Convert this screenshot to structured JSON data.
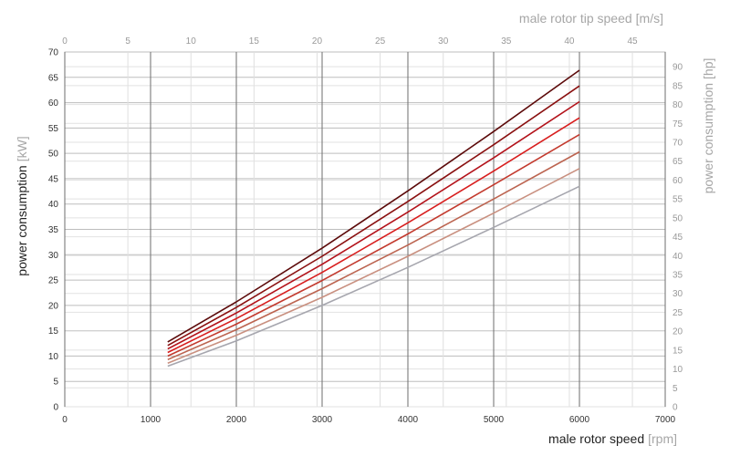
{
  "chart_data": {
    "type": "line",
    "x_axis": {
      "label": "male rotor speed",
      "unit": "[rpm]",
      "range": [
        0,
        7000
      ],
      "ticks": [
        0,
        1000,
        2000,
        3000,
        4000,
        5000,
        6000,
        7000
      ]
    },
    "x2_axis": {
      "label": "male rotor tip speed",
      "unit": "[m/s]",
      "range": [
        0,
        47.6
      ],
      "ticks": [
        0,
        5,
        10,
        15,
        20,
        25,
        30,
        35,
        40,
        45
      ]
    },
    "y_axis": {
      "label": "power consumption",
      "unit": "[kW]",
      "range": [
        0,
        70
      ],
      "ticks": [
        0,
        5,
        10,
        15,
        20,
        25,
        30,
        35,
        40,
        45,
        50,
        55,
        60,
        65,
        70
      ]
    },
    "y2_axis": {
      "label": "power consumption",
      "unit": "[hp]",
      "range": [
        0,
        93.9
      ],
      "ticks": [
        0,
        5,
        10,
        15,
        20,
        25,
        30,
        35,
        40,
        45,
        50,
        55,
        60,
        65,
        70,
        75,
        80,
        85,
        90
      ]
    },
    "grid": true,
    "x": [
      1200,
      2000,
      3000,
      4000,
      5000,
      6000
    ],
    "series": [
      {
        "color": "#5c0a0a",
        "values": [
          12.8,
          20.7,
          31.3,
          42.6,
          54.3,
          66.4
        ]
      },
      {
        "color": "#8a1010",
        "values": [
          12.1,
          19.6,
          29.7,
          40.5,
          51.7,
          63.3
        ]
      },
      {
        "color": "#b3121a",
        "values": [
          11.4,
          18.5,
          28.1,
          38.4,
          49.1,
          60.2
        ]
      },
      {
        "color": "#d81e1e",
        "values": [
          10.7,
          17.4,
          26.5,
          36.3,
          46.5,
          57.0
        ]
      },
      {
        "color": "#c33a2e",
        "values": [
          10.0,
          16.3,
          24.9,
          34.1,
          43.8,
          53.7
        ]
      },
      {
        "color": "#bc6450",
        "values": [
          9.3,
          15.2,
          23.3,
          31.9,
          41.0,
          50.3
        ]
      },
      {
        "color": "#c99080",
        "values": [
          8.6,
          14.1,
          21.6,
          29.7,
          38.2,
          47.0
        ]
      },
      {
        "color": "#a6a6ae",
        "values": [
          8.0,
          13.0,
          20.0,
          27.5,
          35.4,
          43.5
        ]
      }
    ]
  }
}
